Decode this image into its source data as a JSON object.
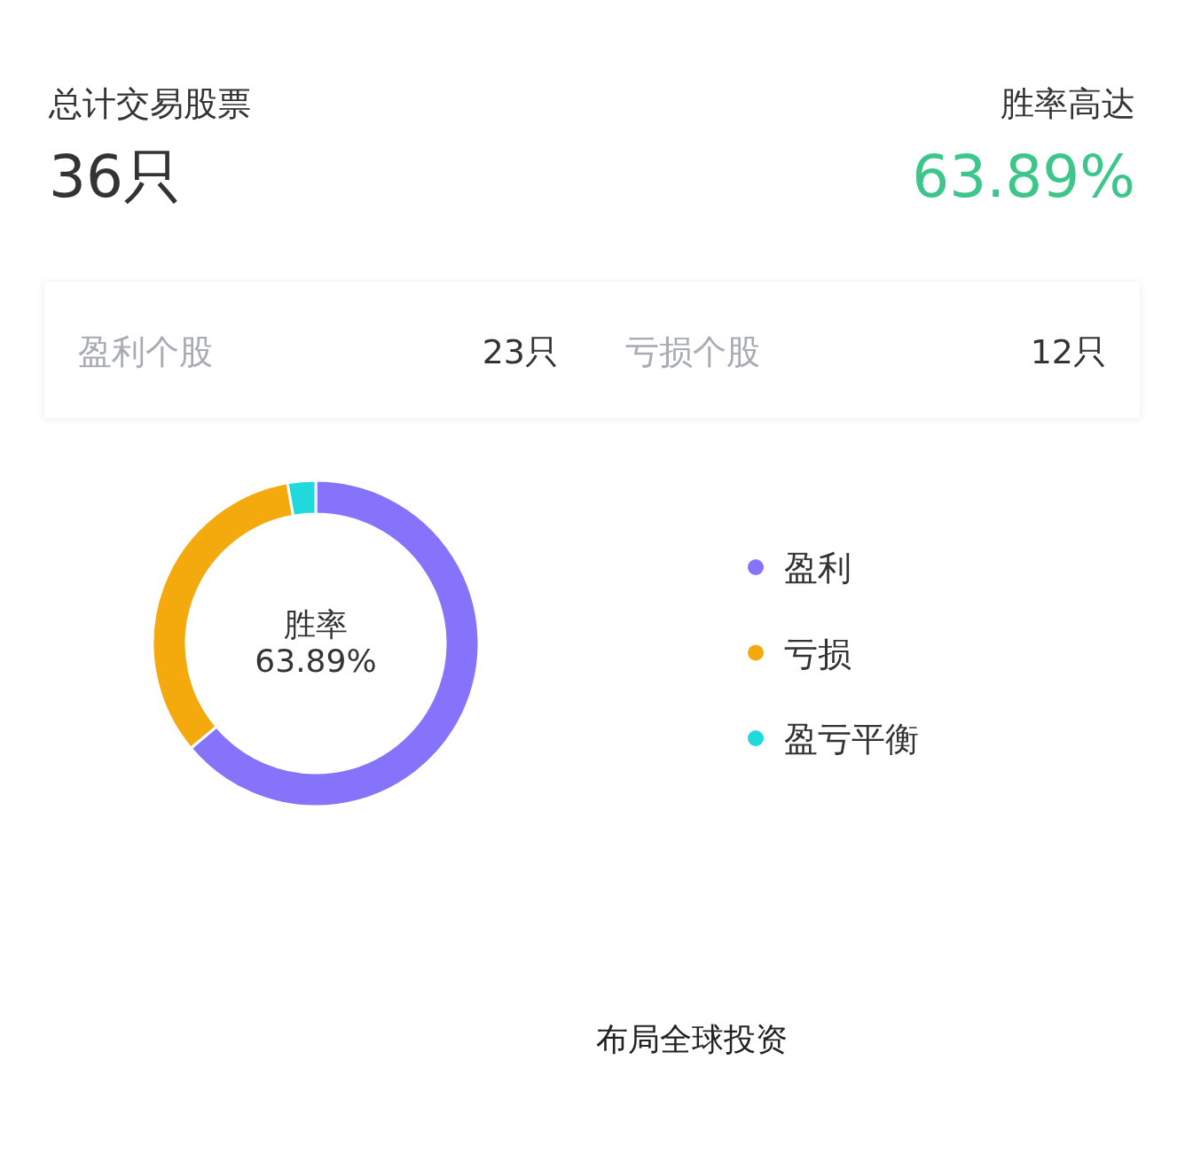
{
  "chart_data": {
    "type": "donut",
    "title": "总计交易股票",
    "categories": [
      "盈利",
      "亏损",
      "盈亏平衡"
    ],
    "values": [
      63.89,
      33.33,
      2.78
    ],
    "colors": [
      "#8573fb",
      "#f4aa0c",
      "#1fd9dc"
    ],
    "legend": "right",
    "annotations": [
      "36只",
      "胜率高达",
      "63.89%",
      "盈利个股",
      "23只",
      "亏损个股",
      "12只",
      "胜率",
      "63.89%",
      "布局全球投资"
    ]
  }
}
